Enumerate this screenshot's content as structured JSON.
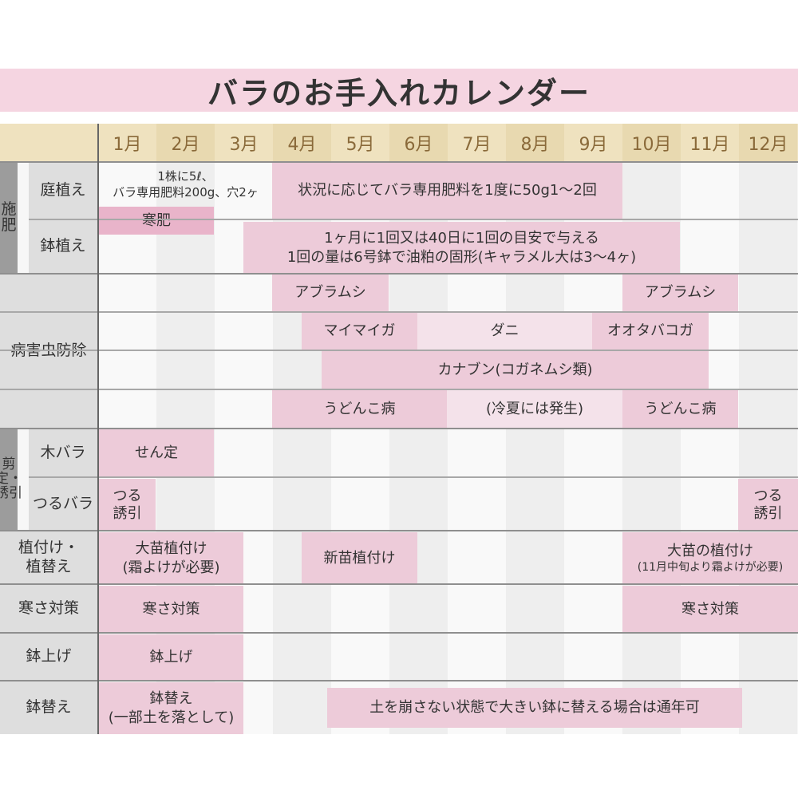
{
  "title": "バラのお手入れカレンダー",
  "months": [
    "1月",
    "2月",
    "3月",
    "4月",
    "5月",
    "6月",
    "7月",
    "8月",
    "9月",
    "10月",
    "11月",
    "12月"
  ],
  "colors": {
    "bar": "#edcbd9",
    "bar_strong": "#e9b4ca",
    "bar_light": "#f4e2ea",
    "header": "#efe2bf",
    "title_bg": "#f5d5e1"
  },
  "fertilizer": {
    "group": "施肥",
    "garden": {
      "label": "庭植え",
      "note_line1": "1株に5ℓ、",
      "note_line2": "バラ専用肥料200g、穴2ヶ",
      "main": "状況に応じてバラ専用肥料を1度に50g1～2回",
      "winter": "寒肥"
    },
    "pot": {
      "label": "鉢植え",
      "line1": "1ヶ月に1回又は40日に1回の目安で与える",
      "line2": "1回の量は6号鉢で油粕の固形(キャラメル大は3～4ヶ)"
    }
  },
  "pests": {
    "label": "病害虫防除",
    "aphid1": "アブラムシ",
    "aphid2": "アブラムシ",
    "gypsy": "マイマイガ",
    "mite": "ダニ",
    "budworm": "オオタバコガ",
    "beetle": "カナブン(コガネムシ類)",
    "mildew1": "うどんこ病",
    "mildew_cool": "(冷夏には発生)",
    "mildew2": "うどんこ病"
  },
  "pruning": {
    "group": "剪定・誘引",
    "bush": {
      "label": "木バラ",
      "task": "せん定"
    },
    "climber": {
      "label": "つるバラ",
      "task1_l1": "つる",
      "task1_l2": "誘引",
      "task2_l1": "つる",
      "task2_l2": "誘引"
    }
  },
  "planting": {
    "label_l1": "植付け・",
    "label_l2": "植替え",
    "t1_l1": "大苗植付け",
    "t1_l2": "(霜よけが必要)",
    "t2": "新苗植付け",
    "t3_l1": "大苗の植付け",
    "t3_l2": "(11月中旬より霜よけが必要)"
  },
  "cold": {
    "label": "寒さ対策",
    "t1": "寒さ対策",
    "t2": "寒さ対策"
  },
  "potup": {
    "label": "鉢上げ",
    "t1": "鉢上げ"
  },
  "repot": {
    "label": "鉢替え",
    "t1_l1": "鉢替え",
    "t1_l2": "(一部土を落として)",
    "t2": "土を崩さない状態で大きい鉢に替える場合は通年可"
  }
}
